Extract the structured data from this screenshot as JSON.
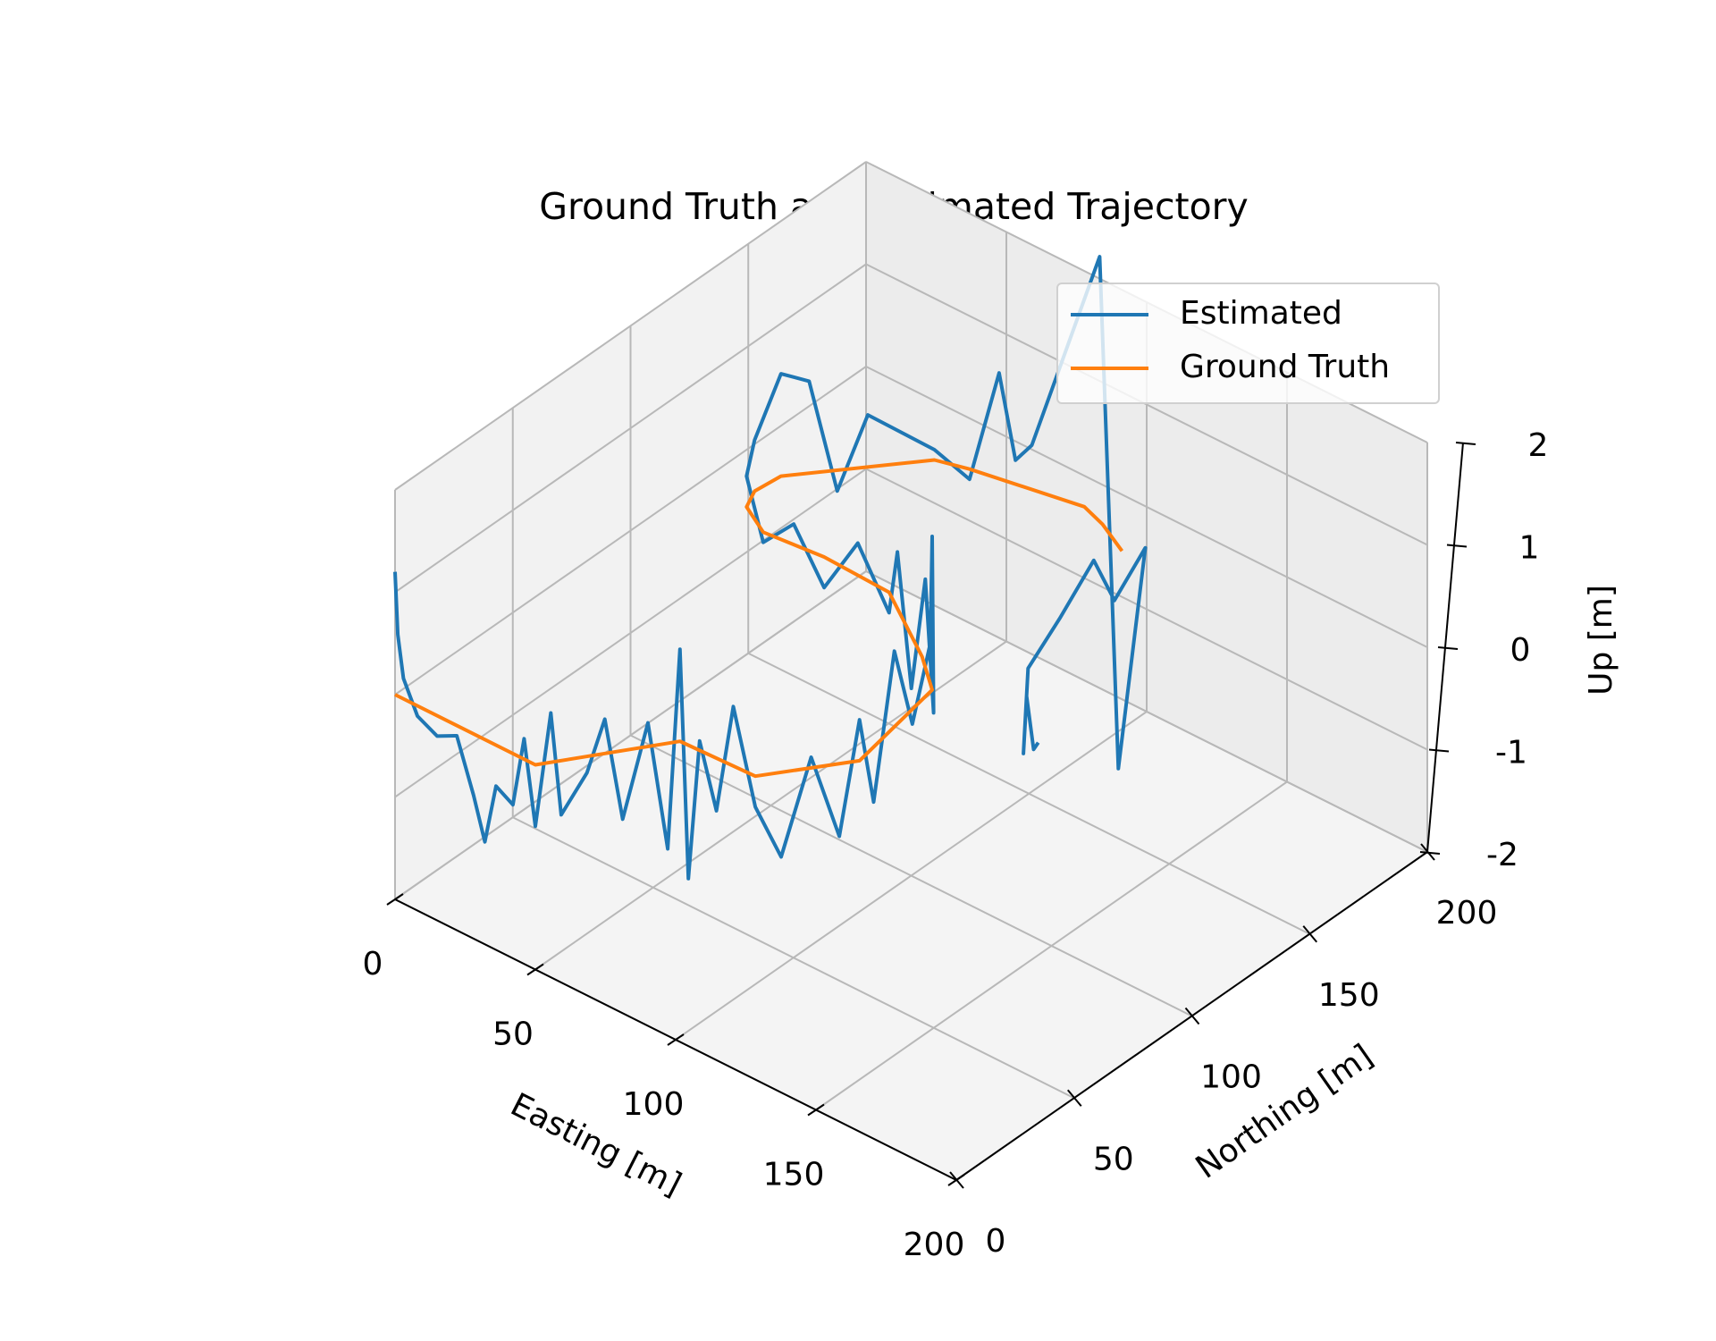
{
  "chart_data": {
    "type": "line3d",
    "title": "Ground Truth and Estimated Trajectory",
    "x_label": "Easting [m]",
    "y_label": "Northing [m]",
    "z_label": "Up [m]",
    "xlim": [
      0,
      200
    ],
    "ylim": [
      0,
      200
    ],
    "zlim": [
      -2,
      2
    ],
    "xticks": [
      0,
      50,
      100,
      150,
      200
    ],
    "yticks": [
      0,
      50,
      100,
      150,
      200
    ],
    "zticks": [
      -2,
      -1,
      0,
      1,
      2
    ],
    "grid": true,
    "legend": "upper right",
    "series": [
      {
        "name": "Estimated",
        "color": "#1f77b4",
        "x": [
          0,
          1,
          3,
          8,
          15,
          22,
          28,
          32,
          36,
          42,
          46,
          50,
          53,
          55,
          60,
          63,
          66,
          70,
          72,
          73,
          76,
          80,
          86,
          92,
          99,
          104,
          108,
          113,
          116,
          116,
          115,
          113,
          111,
          110,
          108,
          100,
          90,
          80,
          72,
          60,
          48,
          38,
          28,
          17,
          14,
          15,
          20,
          25,
          30,
          42,
          52,
          60,
          65,
          70,
          95,
          105,
          118,
          112,
          108,
          100,
          93,
          93,
          95,
          100,
          105
        ],
        "y": [
          0,
          0,
          0,
          0,
          0,
          0,
          0,
          0,
          0,
          0,
          0,
          0,
          3,
          5,
          10,
          14,
          18,
          24,
          30,
          34,
          34,
          34,
          34,
          34,
          35,
          40,
          48,
          54,
          59,
          65,
          75,
          85,
          95,
          97,
          100,
          106,
          112,
          118,
          124,
          125,
          125,
          124,
          123,
          129,
          136,
          146,
          152,
          158,
          165,
          179,
          182,
          185,
          186,
          187,
          186,
          182,
          178,
          172,
          168,
          163,
          158,
          156,
          155,
          152,
          148
        ],
        "z": [
          1.2,
          0.6,
          0.2,
          -0.1,
          -0.2,
          -0.1,
          -0.6,
          -1.0,
          -0.4,
          -0.5,
          0.2,
          -0.6,
          0.5,
          -0.5,
          -0.1,
          0.4,
          -0.6,
          0.3,
          -1.0,
          0.9,
          -1.3,
          0.1,
          -0.5,
          0.6,
          -0.3,
          -0.8,
          0.1,
          -0.7,
          0.4,
          -0.5,
          0.8,
          -0.1,
          0.5,
          1.5,
          -0.3,
          0.8,
          -0.5,
          0.6,
          -0.2,
          0.3,
          -0.3,
          0.2,
          -0.1,
          0.3,
          0.5,
          1.0,
          0.9,
          -0.2,
          0.5,
          0.1,
          -0.1,
          1.0,
          0.2,
          0.4,
          2.6,
          -2.2,
          0.2,
          -0.3,
          0.1,
          -0.5,
          -1.0,
          -1.8,
          -1.2,
          -1.6,
          -1.4
        ]
      },
      {
        "name": "Ground Truth",
        "color": "#ff7f0e",
        "x": [
          0,
          50,
          73,
          99,
          116,
          110,
          98,
          72,
          48,
          28,
          17,
          14,
          15,
          42,
          52,
          87,
          96,
          108
        ],
        "y": [
          0,
          0,
          34,
          35,
          59,
          97,
          107,
          124,
          125,
          123,
          129,
          136,
          146,
          179,
          182,
          189,
          186,
          180
        ],
        "z": [
          0,
          0,
          0,
          0,
          0,
          0,
          0,
          0,
          0,
          0,
          0,
          0,
          0,
          0,
          0,
          0,
          0,
          0
        ]
      }
    ]
  }
}
